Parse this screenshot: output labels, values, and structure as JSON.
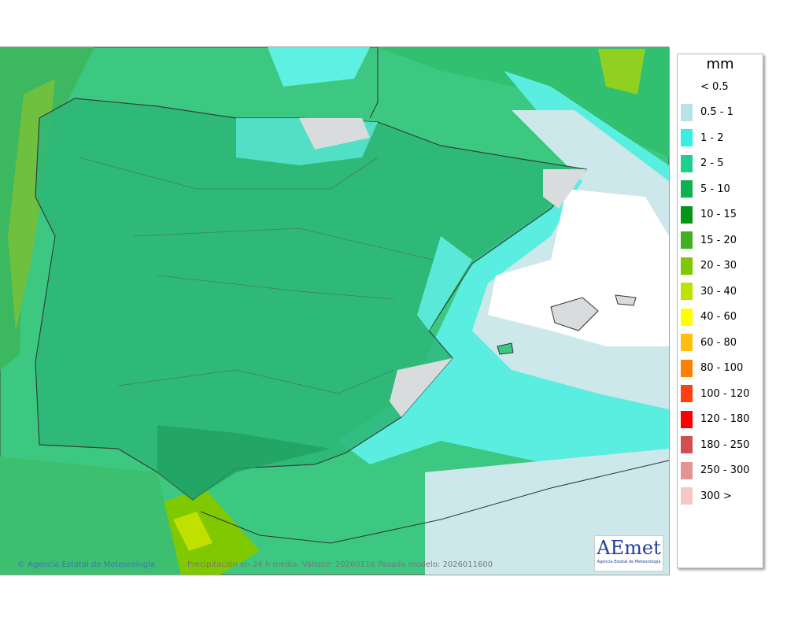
{
  "legend": {
    "title": "mm",
    "items": [
      {
        "label": "< 0.5",
        "color": "#ffffff"
      },
      {
        "label": "0.5 - 1",
        "color": "#b8e2e6"
      },
      {
        "label": "1 - 2",
        "color": "#38f0e0"
      },
      {
        "label": "2 - 5",
        "color": "#1ed08e"
      },
      {
        "label": "5 - 10",
        "color": "#10b050"
      },
      {
        "label": "10 - 15",
        "color": "#089418"
      },
      {
        "label": "15 - 20",
        "color": "#40b020"
      },
      {
        "label": "20 - 30",
        "color": "#80c800"
      },
      {
        "label": "30 - 40",
        "color": "#c0e000"
      },
      {
        "label": "40 - 60",
        "color": "#ffff00"
      },
      {
        "label": "60 - 80",
        "color": "#ffbe10"
      },
      {
        "label": "80 - 100",
        "color": "#ff8000"
      },
      {
        "label": "100 - 120",
        "color": "#ff4010"
      },
      {
        "label": "120 - 180",
        "color": "#ff0000"
      },
      {
        "label": "180 - 250",
        "color": "#d05050"
      },
      {
        "label": "250 - 300",
        "color": "#e09494"
      },
      {
        "label": "300 >",
        "color": "#f4c8c8"
      }
    ]
  },
  "footer": {
    "credit": "© Agencia Estatal de Meteorología",
    "caption": "Precipitación en 24 h media. Validez: 20260116 Pasada modelo: 2026011600"
  },
  "logo": {
    "name": "AEmet",
    "subtitle": "Agencia Estatal de Meteorología"
  }
}
